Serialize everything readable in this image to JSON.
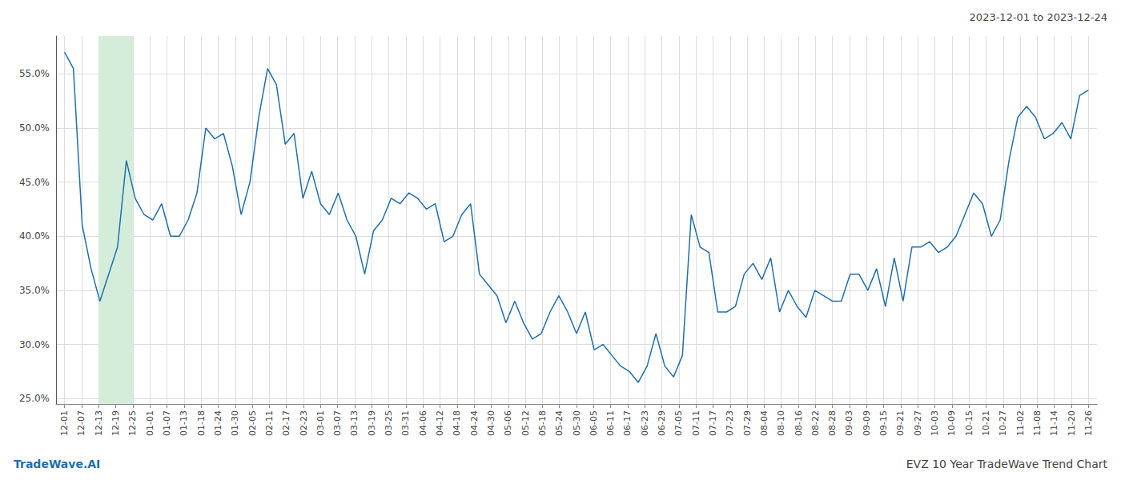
{
  "chart_data": {
    "type": "line",
    "title": "EVZ 10 Year TradeWave Trend Chart",
    "subtitle": "2023-12-01 to 2023-12-24",
    "annotations": [
      "TradeWave.AI"
    ],
    "color": "#1f6fab",
    "grid": true,
    "band": {
      "x": [
        2,
        4
      ],
      "color": "#d4edda"
    },
    "xlim": [
      -0.5,
      60.5
    ],
    "xticks": [
      {
        "value": 0,
        "label": "12-01"
      },
      {
        "value": 1,
        "label": "12-07"
      },
      {
        "value": 2,
        "label": "12-13"
      },
      {
        "value": 3,
        "label": "12-19"
      },
      {
        "value": 4,
        "label": "12-25"
      },
      {
        "value": 5,
        "label": "01-01"
      },
      {
        "value": 6,
        "label": "01-07"
      },
      {
        "value": 7,
        "label": "01-13"
      },
      {
        "value": 8,
        "label": "01-18"
      },
      {
        "value": 9,
        "label": "01-24"
      },
      {
        "value": 10,
        "label": "01-30"
      },
      {
        "value": 11,
        "label": "02-05"
      },
      {
        "value": 12,
        "label": "02-11"
      },
      {
        "value": 13,
        "label": "02-17"
      },
      {
        "value": 14,
        "label": "02-23"
      },
      {
        "value": 15,
        "label": "03-01"
      },
      {
        "value": 16,
        "label": "03-07"
      },
      {
        "value": 17,
        "label": "03-13"
      },
      {
        "value": 18,
        "label": "03-19"
      },
      {
        "value": 19,
        "label": "03-25"
      },
      {
        "value": 20,
        "label": "03-31"
      },
      {
        "value": 21,
        "label": "04-06"
      },
      {
        "value": 22,
        "label": "04-12"
      },
      {
        "value": 23,
        "label": "04-18"
      },
      {
        "value": 24,
        "label": "04-24"
      },
      {
        "value": 25,
        "label": "04-30"
      },
      {
        "value": 26,
        "label": "05-06"
      },
      {
        "value": 27,
        "label": "05-12"
      },
      {
        "value": 28,
        "label": "05-18"
      },
      {
        "value": 29,
        "label": "05-24"
      },
      {
        "value": 30,
        "label": "05-30"
      },
      {
        "value": 31,
        "label": "06-05"
      },
      {
        "value": 32,
        "label": "06-11"
      },
      {
        "value": 33,
        "label": "06-17"
      },
      {
        "value": 34,
        "label": "06-23"
      },
      {
        "value": 35,
        "label": "06-29"
      },
      {
        "value": 36,
        "label": "07-05"
      },
      {
        "value": 37,
        "label": "07-11"
      },
      {
        "value": 38,
        "label": "07-17"
      },
      {
        "value": 39,
        "label": "07-23"
      },
      {
        "value": 40,
        "label": "07-29"
      },
      {
        "value": 41,
        "label": "08-04"
      },
      {
        "value": 42,
        "label": "08-10"
      },
      {
        "value": 43,
        "label": "08-16"
      },
      {
        "value": 44,
        "label": "08-22"
      },
      {
        "value": 45,
        "label": "08-28"
      },
      {
        "value": 46,
        "label": "09-03"
      },
      {
        "value": 47,
        "label": "09-09"
      },
      {
        "value": 48,
        "label": "09-15"
      },
      {
        "value": 49,
        "label": "09-21"
      },
      {
        "value": 50,
        "label": "09-27"
      },
      {
        "value": 51,
        "label": "10-03"
      },
      {
        "value": 52,
        "label": "10-09"
      },
      {
        "value": 53,
        "label": "10-15"
      },
      {
        "value": 54,
        "label": "10-21"
      },
      {
        "value": 55,
        "label": "10-27"
      },
      {
        "value": 56,
        "label": "11-02"
      },
      {
        "value": 57,
        "label": "11-08"
      },
      {
        "value": 58,
        "label": "11-14"
      },
      {
        "value": 59,
        "label": "11-20"
      },
      {
        "value": 60,
        "label": "11-26"
      }
    ],
    "ylim": [
      0.245,
      0.585
    ],
    "yticks": [
      {
        "value": 0.25,
        "label": "25.0%"
      },
      {
        "value": 0.3,
        "label": "30.0%"
      },
      {
        "value": 0.35,
        "label": "35.0%"
      },
      {
        "value": 0.4,
        "label": "40.0%"
      },
      {
        "value": 0.45,
        "label": "45.0%"
      },
      {
        "value": 0.5,
        "label": "50.0%"
      },
      {
        "value": 0.55,
        "label": "55.0%"
      }
    ],
    "x": [
      0,
      0.5172,
      1.0345,
      1.5517,
      2.069,
      2.5862,
      3.1034,
      3.6207,
      4.1379,
      4.6552,
      5.1724,
      5.6897,
      6.2069,
      6.7241,
      7.2414,
      7.7586,
      8.2759,
      8.7931,
      9.3103,
      9.8276,
      10.3448,
      10.8621,
      11.3793,
      11.8966,
      12.4138,
      12.931,
      13.4483,
      13.9655,
      14.4828,
      15,
      15.5172,
      16.0345,
      16.5517,
      17.069,
      17.5862,
      18.1034,
      18.6207,
      19.1379,
      19.6552,
      20.1724,
      20.6897,
      21.2069,
      21.7241,
      22.2414,
      22.7586,
      23.2759,
      23.7931,
      24.3103,
      24.8276,
      25.3448,
      25.8621,
      26.3793,
      26.8966,
      27.4138,
      27.931,
      28.4483,
      28.9655,
      29.4828,
      30,
      30.5172,
      31.0345,
      31.5517,
      32.069,
      32.5862,
      33.1034,
      33.6207,
      34.1379,
      34.6552,
      35.1724,
      35.6897,
      36.2069,
      36.7241,
      37.2414,
      37.7586,
      38.2759,
      38.7931,
      39.3103,
      39.8276,
      40.3448,
      40.8621,
      41.3793,
      41.8966,
      42.4138,
      42.931,
      43.4483,
      43.9655,
      44.4828,
      45,
      45.5172,
      46.0345,
      46.5517,
      47.069,
      47.5862,
      48.1034,
      48.6207,
      49.1379,
      49.6552,
      50.1724,
      50.6897,
      51.2069,
      51.7241,
      52.2414,
      52.7586,
      53.2759,
      53.7931,
      54.3103,
      54.8276,
      55.3448,
      55.8621,
      56.3793,
      56.8966,
      57.4138,
      57.931,
      58.4483,
      58.9655,
      59.4828,
      60
    ],
    "values": [
      0.57,
      0.555,
      0.41,
      0.37,
      0.34,
      0.365,
      0.39,
      0.47,
      0.435,
      0.42,
      0.415,
      0.43,
      0.4,
      0.4,
      0.415,
      0.44,
      0.5,
      0.49,
      0.495,
      0.465,
      0.42,
      0.45,
      0.51,
      0.555,
      0.54,
      0.485,
      0.495,
      0.435,
      0.46,
      0.43,
      0.42,
      0.44,
      0.415,
      0.4,
      0.365,
      0.405,
      0.415,
      0.435,
      0.43,
      0.44,
      0.435,
      0.425,
      0.43,
      0.395,
      0.4,
      0.42,
      0.43,
      0.365,
      0.355,
      0.345,
      0.32,
      0.34,
      0.32,
      0.305,
      0.31,
      0.33,
      0.345,
      0.33,
      0.31,
      0.33,
      0.295,
      0.3,
      0.29,
      0.28,
      0.275,
      0.265,
      0.28,
      0.31,
      0.28,
      0.27,
      0.29,
      0.42,
      0.39,
      0.385,
      0.33,
      0.33,
      0.335,
      0.365,
      0.375,
      0.36,
      0.38,
      0.33,
      0.35,
      0.335,
      0.325,
      0.35,
      0.345,
      0.34,
      0.34,
      0.365,
      0.365,
      0.35,
      0.37,
      0.335,
      0.38,
      0.34,
      0.39,
      0.39,
      0.395,
      0.385,
      0.39,
      0.4,
      0.42,
      0.44,
      0.43,
      0.4,
      0.415,
      0.47,
      0.51,
      0.52,
      0.51,
      0.49,
      0.495,
      0.505,
      0.49,
      0.53,
      0.535
    ]
  }
}
